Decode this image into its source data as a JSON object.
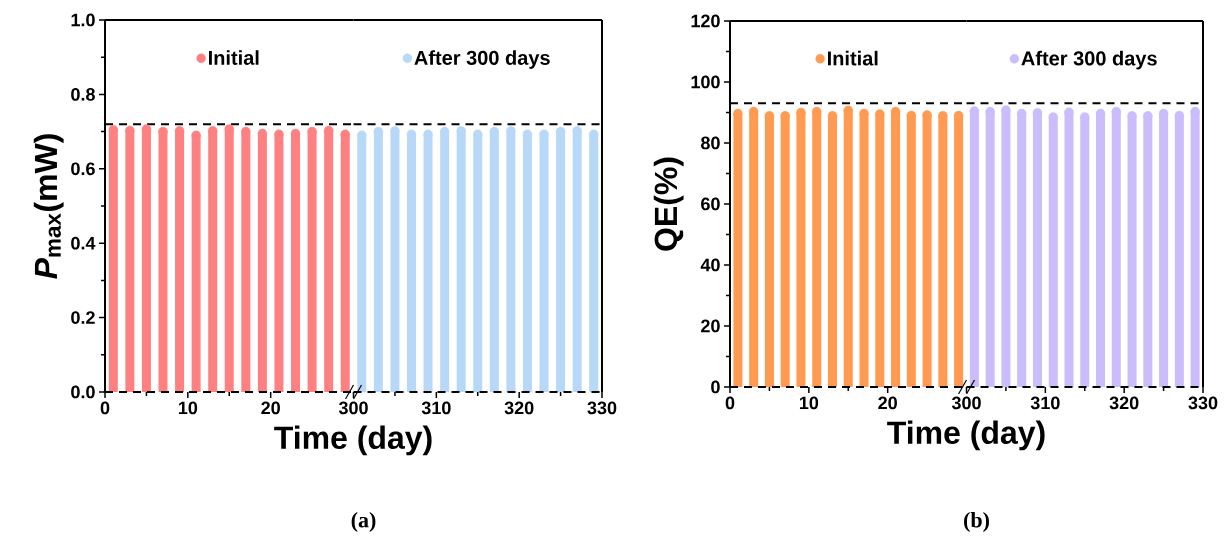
{
  "chart_data": [
    {
      "type": "lollipop",
      "ylabel": "*P*$_{max}$(mW)",
      "xlabel": "Time (day)",
      "legend": "top",
      "marker": "circle",
      "xlim": [
        0,
        30
      ],
      "xticks": [
        0,
        10,
        20
      ],
      "ylim": [
        0,
        1.0
      ],
      "yticks": [
        {
          "value": 0,
          "label": "0.0"
        },
        {
          "value": 0.2,
          "label": "0.2"
        },
        {
          "value": 0.4,
          "label": "0.4"
        },
        {
          "value": 0.6,
          "label": "0.6"
        },
        {
          "value": 0.8,
          "label": "0.8"
        },
        {
          "value": 1.0,
          "label": "1.0"
        }
      ],
      "series": [
        {
          "name": "Initial",
          "color": "#ff8080",
          "x": [
            1,
            3,
            5,
            7,
            9,
            11,
            13,
            15,
            17,
            19,
            21,
            23,
            25,
            27,
            29
          ],
          "values": [
            0.705,
            0.703,
            0.707,
            0.7,
            0.702,
            0.69,
            0.702,
            0.707,
            0.7,
            0.695,
            0.693,
            0.695,
            0.7,
            0.703,
            0.693
          ]
        }
      ],
      "ref_lines": [
        {
          "axis": "y",
          "value": 0.72,
          "color": "#000000",
          "line_style": "dashed"
        },
        {
          "axis": "y",
          "value": 0,
          "color": "#000000",
          "line_style": "dashed"
        }
      ],
      "annotations": [
        "(a)"
      ]
    },
    {
      "type": "lollipop",
      "legend": "top",
      "marker": "circle",
      "tick_labels": "x",
      "xlim": [
        300,
        330
      ],
      "xticks": [
        300,
        310,
        320,
        330
      ],
      "ylim": [
        0,
        1.0
      ],
      "series": [
        {
          "name": "After 300 days",
          "color": "#b8d8f8",
          "x": [
            301,
            303,
            305,
            307,
            309,
            311,
            313,
            315,
            317,
            319,
            321,
            323,
            325,
            327,
            329
          ],
          "values": [
            0.69,
            0.7,
            0.702,
            0.693,
            0.693,
            0.7,
            0.702,
            0.693,
            0.7,
            0.702,
            0.693,
            0.693,
            0.7,
            0.702,
            0.693
          ]
        }
      ],
      "ref_lines": [
        {
          "axis": "y",
          "value": 0.72,
          "color": "#000000",
          "line_style": "dashed"
        },
        {
          "axis": "y",
          "value": 0,
          "color": "#000000",
          "line_style": "dashed"
        }
      ]
    },
    {
      "type": "lollipop",
      "ylabel": "QE(%)",
      "xlabel": "Time (day)",
      "legend": "top",
      "marker": "circle",
      "xlim": [
        0,
        30
      ],
      "xticks": [
        0,
        10,
        20
      ],
      "ylim": [
        0,
        120
      ],
      "yticks": [
        0,
        20,
        40,
        60,
        80,
        100,
        120
      ],
      "series": [
        {
          "name": "Initial",
          "color": "#ff9a50",
          "x": [
            1,
            3,
            5,
            7,
            9,
            11,
            13,
            15,
            17,
            19,
            21,
            23,
            25,
            27,
            29
          ],
          "values": [
            89.7,
            90.3,
            88.9,
            88.9,
            90.0,
            90.3,
            88.9,
            90.7,
            89.7,
            89.5,
            90.3,
            89.0,
            89.2,
            88.9,
            89.0
          ]
        }
      ],
      "ref_lines": [
        {
          "axis": "y",
          "value": 93,
          "color": "#000000",
          "line_style": "dashed"
        },
        {
          "axis": "y",
          "value": 0,
          "color": "#000000",
          "line_style": "dashed"
        }
      ],
      "annotations": [
        "(b)"
      ]
    },
    {
      "type": "lollipop",
      "legend": "top",
      "marker": "circle",
      "tick_labels": "x",
      "xlim": [
        300,
        330
      ],
      "xticks": [
        300,
        310,
        320,
        330
      ],
      "ylim": [
        0,
        120
      ],
      "series": [
        {
          "name": "After 300 days",
          "color": "#cbbcfc",
          "x": [
            301,
            303,
            305,
            307,
            309,
            311,
            313,
            315,
            317,
            319,
            321,
            323,
            325,
            327,
            329
          ],
          "values": [
            90.5,
            90.3,
            90.8,
            89.7,
            89.9,
            88.5,
            90.1,
            88.5,
            89.7,
            90.3,
            88.9,
            88.9,
            89.7,
            89.0,
            90.3
          ]
        }
      ],
      "ref_lines": [
        {
          "axis": "y",
          "value": 93,
          "color": "#000000",
          "line_style": "dashed"
        },
        {
          "axis": "y",
          "value": 0,
          "color": "#000000",
          "line_style": "dashed"
        }
      ]
    }
  ]
}
